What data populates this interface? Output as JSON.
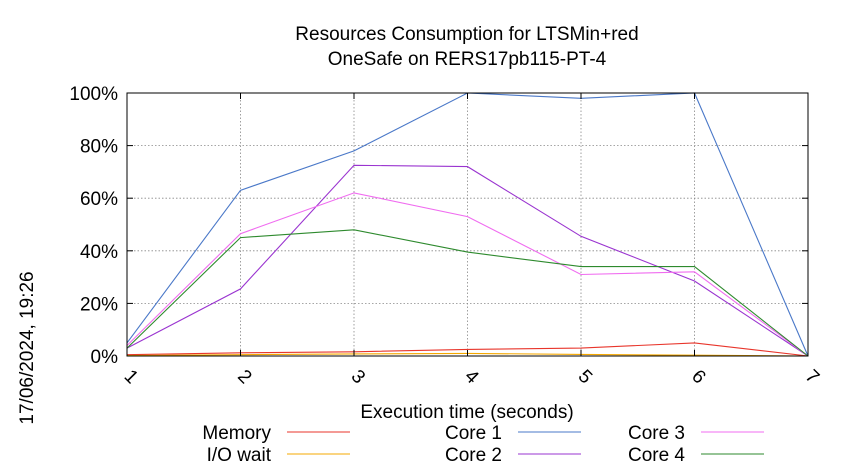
{
  "chart_data": {
    "type": "line",
    "title": "Resources Consumption for LTSMin+red",
    "subtitle": "OneSafe on RERS17pb115-PT-4",
    "xlabel": "Execution time (seconds)",
    "ylabel": "",
    "x": [
      1,
      2,
      3,
      4,
      5,
      6,
      7
    ],
    "xlim": [
      1,
      7
    ],
    "ylim": [
      0,
      100
    ],
    "x_ticks": [
      "1",
      "2",
      "3",
      "4",
      "5",
      "6",
      "7"
    ],
    "y_ticks": [
      "0%",
      "20%",
      "40%",
      "60%",
      "80%",
      "100%"
    ],
    "grid": true,
    "legend_position": "bottom",
    "timestamp": "17/06/2024, 19:26",
    "series": [
      {
        "name": "Memory",
        "color": "#e8352b",
        "values": [
          0.5,
          1.2,
          1.6,
          2.5,
          3.0,
          5.0,
          0
        ]
      },
      {
        "name": "I/O wait",
        "color": "#f5a800",
        "values": [
          0.2,
          0.5,
          0.8,
          1.0,
          0.6,
          0.3,
          0
        ]
      },
      {
        "name": "Core 1",
        "color": "#4a78c8",
        "values": [
          5,
          63,
          78,
          100,
          98,
          100,
          0
        ]
      },
      {
        "name": "Core 2",
        "color": "#9a34d0",
        "values": [
          3,
          25.5,
          72.5,
          72,
          45.5,
          28.5,
          0
        ]
      },
      {
        "name": "Core 3",
        "color": "#f06cf0",
        "values": [
          4,
          46.5,
          62,
          53,
          31,
          32,
          0
        ]
      },
      {
        "name": "Core 4",
        "color": "#2e8a2e",
        "values": [
          3,
          45,
          48,
          39.5,
          34,
          34,
          0
        ]
      }
    ]
  }
}
